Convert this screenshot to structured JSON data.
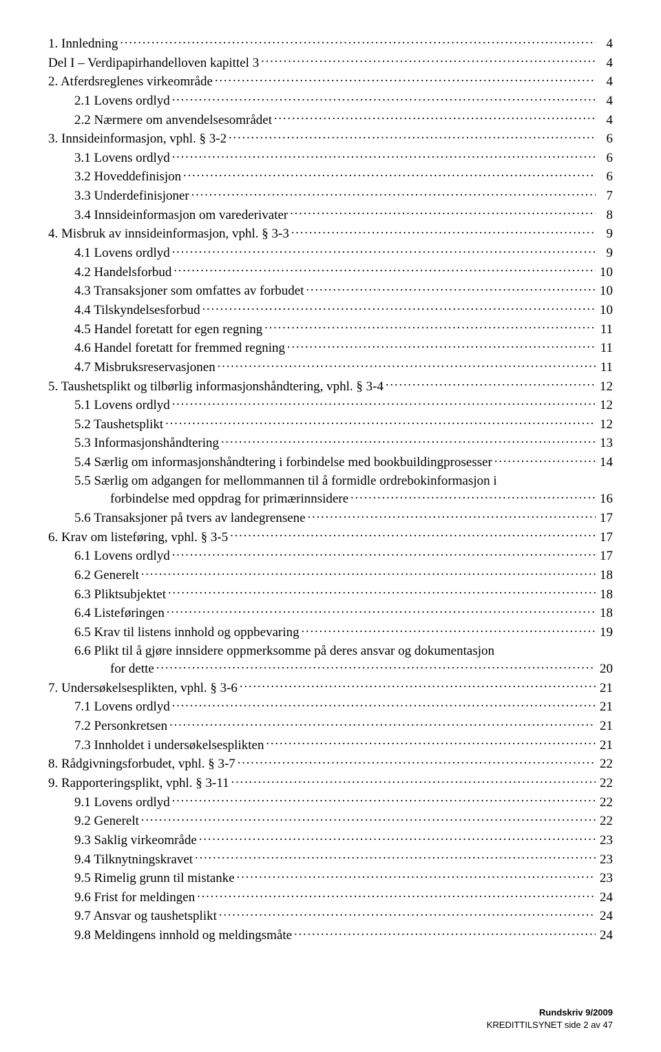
{
  "toc": [
    {
      "indent": 0,
      "label": "1. Innledning",
      "page": "4"
    },
    {
      "indent": 0,
      "label": "Del I – Verdipapirhandelloven kapittel 3",
      "page": "4"
    },
    {
      "indent": 0,
      "label": "2. Atferdsreglenes virkeområde",
      "page": "4"
    },
    {
      "indent": 1,
      "label": "2.1 Lovens ordlyd",
      "page": "4"
    },
    {
      "indent": 1,
      "label": "2.2 Nærmere om anvendelsesområdet",
      "page": "4"
    },
    {
      "indent": 0,
      "label": "3. Innsideinformasjon, vphl. § 3-2",
      "page": "6"
    },
    {
      "indent": 1,
      "label": "3.1 Lovens ordlyd",
      "page": "6"
    },
    {
      "indent": 1,
      "label": "3.2 Hoveddefinisjon",
      "page": "6"
    },
    {
      "indent": 1,
      "label": "3.3 Underdefinisjoner",
      "page": "7"
    },
    {
      "indent": 1,
      "label": "3.4 Innsideinformasjon om varederivater",
      "page": "8"
    },
    {
      "indent": 0,
      "label": "4. Misbruk av innsideinformasjon, vphl. § 3-3",
      "page": "9"
    },
    {
      "indent": 1,
      "label": "4.1 Lovens ordlyd",
      "page": "9"
    },
    {
      "indent": 1,
      "label": "4.2 Handelsforbud",
      "page": "10"
    },
    {
      "indent": 1,
      "label": "4.3 Transaksjoner som omfattes av forbudet",
      "page": "10"
    },
    {
      "indent": 1,
      "label": "4.4 Tilskyndelsesforbud",
      "page": "10"
    },
    {
      "indent": 1,
      "label": "4.5 Handel foretatt for egen regning",
      "page": "11"
    },
    {
      "indent": 1,
      "label": "4.6 Handel foretatt for fremmed regning",
      "page": "11"
    },
    {
      "indent": 1,
      "label": "4.7 Misbruksreservasjonen",
      "page": "11"
    },
    {
      "indent": 0,
      "label": "5. Taushetsplikt og tilbørlig informasjonshåndtering, vphl. § 3-4",
      "page": "12"
    },
    {
      "indent": 1,
      "label": "5.1 Lovens ordlyd",
      "page": "12"
    },
    {
      "indent": 1,
      "label": "5.2 Taushetsplikt",
      "page": "12"
    },
    {
      "indent": 1,
      "label": "5.3 Informasjonshåndtering",
      "page": "13"
    },
    {
      "indent": 1,
      "label": "5.4 Særlig om informasjonshåndtering i forbindelse med bookbuildingprosesser",
      "page": "14"
    },
    {
      "indent": 1,
      "multiline": true,
      "line1": "5.5 Særlig om adgangen for mellommannen til å formidle ordrebokinformasjon i",
      "line2": "forbindelse med oppdrag for primærinnsidere",
      "page": "16"
    },
    {
      "indent": 1,
      "label": "5.6 Transaksjoner på tvers av landegrensene",
      "page": "17"
    },
    {
      "indent": 0,
      "label": "6. Krav om listeføring, vphl. § 3-5",
      "page": "17"
    },
    {
      "indent": 1,
      "label": "6.1 Lovens ordlyd",
      "page": "17"
    },
    {
      "indent": 1,
      "label": "6.2 Generelt",
      "page": "18"
    },
    {
      "indent": 1,
      "label": "6.3 Pliktsubjektet",
      "page": "18"
    },
    {
      "indent": 1,
      "label": "6.4 Listeføringen",
      "page": "18"
    },
    {
      "indent": 1,
      "label": "6.5 Krav til listens innhold og oppbevaring",
      "page": "19"
    },
    {
      "indent": 1,
      "multiline": true,
      "line1": "6.6 Plikt til å gjøre innsidere oppmerksomme på deres ansvar og dokumentasjon",
      "line2": "for dette",
      "page": "20"
    },
    {
      "indent": 0,
      "label": "7. Undersøkelsesplikten, vphl. § 3-6",
      "page": "21"
    },
    {
      "indent": 1,
      "label": "7.1 Lovens ordlyd",
      "page": "21"
    },
    {
      "indent": 1,
      "label": "7.2 Personkretsen",
      "page": "21"
    },
    {
      "indent": 1,
      "label": "7.3 Innholdet i undersøkelsesplikten",
      "page": "21"
    },
    {
      "indent": 0,
      "label": "8. Rådgivningsforbudet, vphl. § 3-7",
      "page": "22"
    },
    {
      "indent": 0,
      "label": "9. Rapporteringsplikt, vphl. § 3-11",
      "page": "22"
    },
    {
      "indent": 1,
      "label": "9.1 Lovens ordlyd",
      "page": "22"
    },
    {
      "indent": 1,
      "label": "9.2 Generelt",
      "page": "22"
    },
    {
      "indent": 1,
      "label": "9.3 Saklig virkeområde",
      "page": "23"
    },
    {
      "indent": 1,
      "label": "9.4 Tilknytningskravet",
      "page": "23"
    },
    {
      "indent": 1,
      "label": "9.5 Rimelig grunn til mistanke",
      "page": "23"
    },
    {
      "indent": 1,
      "label": "9.6 Frist for meldingen",
      "page": "24"
    },
    {
      "indent": 1,
      "label": "9.7 Ansvar og taushetsplikt",
      "page": "24"
    },
    {
      "indent": 1,
      "label": "9.8 Meldingens innhold og meldingsmåte",
      "page": "24"
    }
  ],
  "footer": {
    "line1": "Rundskriv 9/2009",
    "line2": "KREDITTILSYNET side 2 av 47"
  }
}
